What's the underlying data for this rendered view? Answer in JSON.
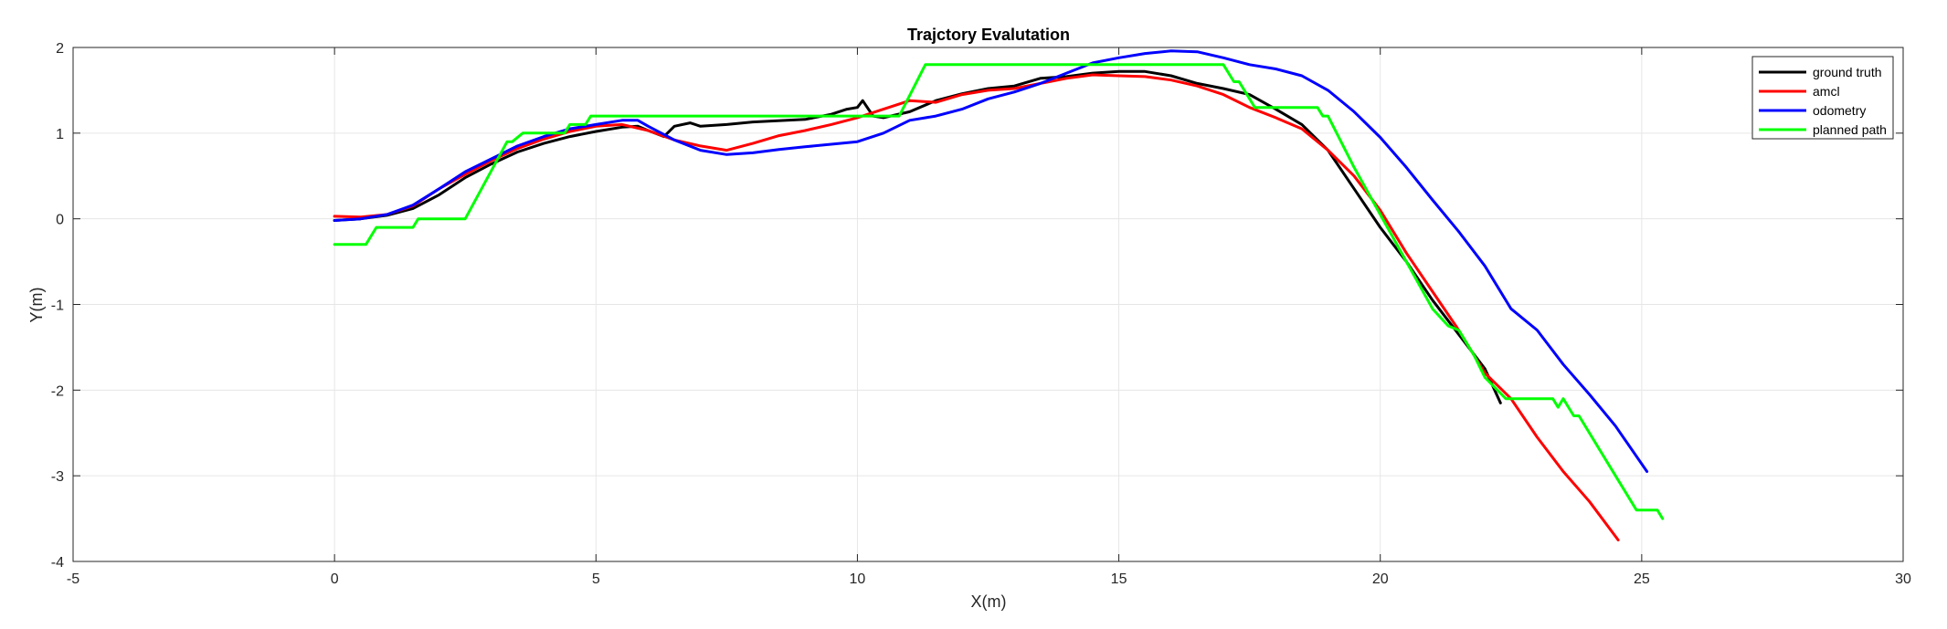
{
  "chart_data": {
    "type": "line",
    "title": "Trajctory Evalutation",
    "xlabel": "X(m)",
    "ylabel": "Y(m)",
    "xlim": [
      -5,
      30
    ],
    "ylim": [
      -4,
      2
    ],
    "xticks": [
      "-5",
      "0",
      "5",
      "10",
      "15",
      "20",
      "25",
      "30"
    ],
    "yticks": [
      "2",
      "1",
      "0",
      "-1",
      "-2",
      "-3",
      "-4"
    ],
    "grid": true,
    "legend_position": "top-right",
    "series": [
      {
        "name": "ground truth",
        "color": "#000000",
        "points": [
          [
            0,
            -0.02
          ],
          [
            0.5,
            0.0
          ],
          [
            1.0,
            0.04
          ],
          [
            1.5,
            0.12
          ],
          [
            2.0,
            0.28
          ],
          [
            2.5,
            0.48
          ],
          [
            3.0,
            0.64
          ],
          [
            3.5,
            0.78
          ],
          [
            4.0,
            0.88
          ],
          [
            4.5,
            0.96
          ],
          [
            5.0,
            1.02
          ],
          [
            5.5,
            1.07
          ],
          [
            5.8,
            1.08
          ],
          [
            6.0,
            1.03
          ],
          [
            6.3,
            0.96
          ],
          [
            6.5,
            1.08
          ],
          [
            6.8,
            1.12
          ],
          [
            7.0,
            1.08
          ],
          [
            7.5,
            1.1
          ],
          [
            8.0,
            1.13
          ],
          [
            9.0,
            1.16
          ],
          [
            9.5,
            1.22
          ],
          [
            9.8,
            1.28
          ],
          [
            10.0,
            1.3
          ],
          [
            10.1,
            1.38
          ],
          [
            10.3,
            1.2
          ],
          [
            10.5,
            1.18
          ],
          [
            11.0,
            1.25
          ],
          [
            11.5,
            1.38
          ],
          [
            12.0,
            1.46
          ],
          [
            12.5,
            1.52
          ],
          [
            13.0,
            1.55
          ],
          [
            13.5,
            1.64
          ],
          [
            14.0,
            1.66
          ],
          [
            14.5,
            1.7
          ],
          [
            15.0,
            1.72
          ],
          [
            15.5,
            1.72
          ],
          [
            16.0,
            1.67
          ],
          [
            16.5,
            1.58
          ],
          [
            17.0,
            1.52
          ],
          [
            17.5,
            1.45
          ],
          [
            18.0,
            1.28
          ],
          [
            18.5,
            1.1
          ],
          [
            19.0,
            0.8
          ],
          [
            19.5,
            0.35
          ],
          [
            20.0,
            -0.1
          ],
          [
            20.5,
            -0.5
          ],
          [
            21.0,
            -0.95
          ],
          [
            21.5,
            -1.35
          ],
          [
            22.0,
            -1.75
          ],
          [
            22.3,
            -2.15
          ]
        ]
      },
      {
        "name": "amcl",
        "color": "#ff0000",
        "points": [
          [
            0,
            0.03
          ],
          [
            0.5,
            0.02
          ],
          [
            1.0,
            0.05
          ],
          [
            1.5,
            0.15
          ],
          [
            2.0,
            0.35
          ],
          [
            2.5,
            0.52
          ],
          [
            3.0,
            0.68
          ],
          [
            3.5,
            0.82
          ],
          [
            4.0,
            0.93
          ],
          [
            4.5,
            1.02
          ],
          [
            5.0,
            1.08
          ],
          [
            5.5,
            1.1
          ],
          [
            6.0,
            1.03
          ],
          [
            6.5,
            0.92
          ],
          [
            7.0,
            0.85
          ],
          [
            7.5,
            0.8
          ],
          [
            8.0,
            0.88
          ],
          [
            8.5,
            0.97
          ],
          [
            9.0,
            1.03
          ],
          [
            9.5,
            1.1
          ],
          [
            10.0,
            1.18
          ],
          [
            10.5,
            1.28
          ],
          [
            11.0,
            1.38
          ],
          [
            11.5,
            1.36
          ],
          [
            12.0,
            1.45
          ],
          [
            12.5,
            1.5
          ],
          [
            13.0,
            1.52
          ],
          [
            13.5,
            1.58
          ],
          [
            14.0,
            1.64
          ],
          [
            14.5,
            1.68
          ],
          [
            15.0,
            1.67
          ],
          [
            15.5,
            1.66
          ],
          [
            16.0,
            1.62
          ],
          [
            16.5,
            1.55
          ],
          [
            17.0,
            1.45
          ],
          [
            17.5,
            1.3
          ],
          [
            18.0,
            1.18
          ],
          [
            18.5,
            1.05
          ],
          [
            19.0,
            0.8
          ],
          [
            19.5,
            0.5
          ],
          [
            20.0,
            0.1
          ],
          [
            20.5,
            -0.4
          ],
          [
            21.0,
            -0.85
          ],
          [
            21.5,
            -1.3
          ],
          [
            22.0,
            -1.8
          ],
          [
            22.5,
            -2.1
          ],
          [
            23.0,
            -2.55
          ],
          [
            23.5,
            -2.95
          ],
          [
            24.0,
            -3.3
          ],
          [
            24.55,
            -3.75
          ]
        ]
      },
      {
        "name": "odometry",
        "color": "#0000ff",
        "points": [
          [
            0,
            -0.02
          ],
          [
            0.5,
            0.0
          ],
          [
            1.0,
            0.05
          ],
          [
            1.5,
            0.16
          ],
          [
            2.0,
            0.35
          ],
          [
            2.5,
            0.55
          ],
          [
            3.0,
            0.7
          ],
          [
            3.5,
            0.85
          ],
          [
            4.0,
            0.96
          ],
          [
            4.5,
            1.05
          ],
          [
            5.0,
            1.1
          ],
          [
            5.5,
            1.15
          ],
          [
            5.8,
            1.15
          ],
          [
            6.0,
            1.08
          ],
          [
            6.5,
            0.92
          ],
          [
            7.0,
            0.8
          ],
          [
            7.5,
            0.75
          ],
          [
            8.0,
            0.77
          ],
          [
            8.5,
            0.81
          ],
          [
            9.0,
            0.84
          ],
          [
            9.5,
            0.87
          ],
          [
            10.0,
            0.9
          ],
          [
            10.5,
            1.0
          ],
          [
            11.0,
            1.15
          ],
          [
            11.5,
            1.2
          ],
          [
            12.0,
            1.28
          ],
          [
            12.5,
            1.4
          ],
          [
            13.0,
            1.48
          ],
          [
            13.5,
            1.58
          ],
          [
            14.0,
            1.7
          ],
          [
            14.5,
            1.82
          ],
          [
            15.0,
            1.88
          ],
          [
            15.5,
            1.93
          ],
          [
            16.0,
            1.96
          ],
          [
            16.5,
            1.95
          ],
          [
            17.0,
            1.88
          ],
          [
            17.5,
            1.8
          ],
          [
            18.0,
            1.75
          ],
          [
            18.5,
            1.67
          ],
          [
            19.0,
            1.5
          ],
          [
            19.5,
            1.25
          ],
          [
            20.0,
            0.95
          ],
          [
            20.5,
            0.6
          ],
          [
            21.0,
            0.22
          ],
          [
            21.5,
            -0.15
          ],
          [
            22.0,
            -0.55
          ],
          [
            22.5,
            -1.05
          ],
          [
            23.0,
            -1.3
          ],
          [
            23.5,
            -1.7
          ],
          [
            24.0,
            -2.05
          ],
          [
            24.5,
            -2.42
          ],
          [
            25.1,
            -2.95
          ]
        ]
      },
      {
        "name": "planned path",
        "color": "#00ff00",
        "points": [
          [
            0,
            -0.3
          ],
          [
            0.6,
            -0.3
          ],
          [
            0.8,
            -0.1
          ],
          [
            1.5,
            -0.1
          ],
          [
            1.6,
            0.0
          ],
          [
            2.5,
            0.0
          ],
          [
            3.3,
            0.9
          ],
          [
            3.4,
            0.9
          ],
          [
            3.6,
            1.0
          ],
          [
            4.4,
            1.0
          ],
          [
            4.5,
            1.1
          ],
          [
            4.8,
            1.1
          ],
          [
            4.9,
            1.2
          ],
          [
            10.8,
            1.2
          ],
          [
            11.3,
            1.8
          ],
          [
            17.0,
            1.8
          ],
          [
            17.2,
            1.6
          ],
          [
            17.3,
            1.6
          ],
          [
            17.6,
            1.3
          ],
          [
            18.8,
            1.3
          ],
          [
            18.9,
            1.2
          ],
          [
            19.0,
            1.2
          ],
          [
            19.5,
            0.6
          ],
          [
            20.0,
            0.05
          ],
          [
            20.5,
            -0.5
          ],
          [
            21.0,
            -1.05
          ],
          [
            21.3,
            -1.25
          ],
          [
            21.5,
            -1.3
          ],
          [
            21.8,
            -1.6
          ],
          [
            22.0,
            -1.85
          ],
          [
            22.4,
            -2.1
          ],
          [
            23.3,
            -2.1
          ],
          [
            23.4,
            -2.2
          ],
          [
            23.5,
            -2.1
          ],
          [
            23.6,
            -2.2
          ],
          [
            23.7,
            -2.3
          ],
          [
            23.8,
            -2.3
          ],
          [
            24.5,
            -3.0
          ],
          [
            24.9,
            -3.4
          ],
          [
            25.3,
            -3.4
          ],
          [
            25.4,
            -3.5
          ]
        ]
      }
    ]
  }
}
